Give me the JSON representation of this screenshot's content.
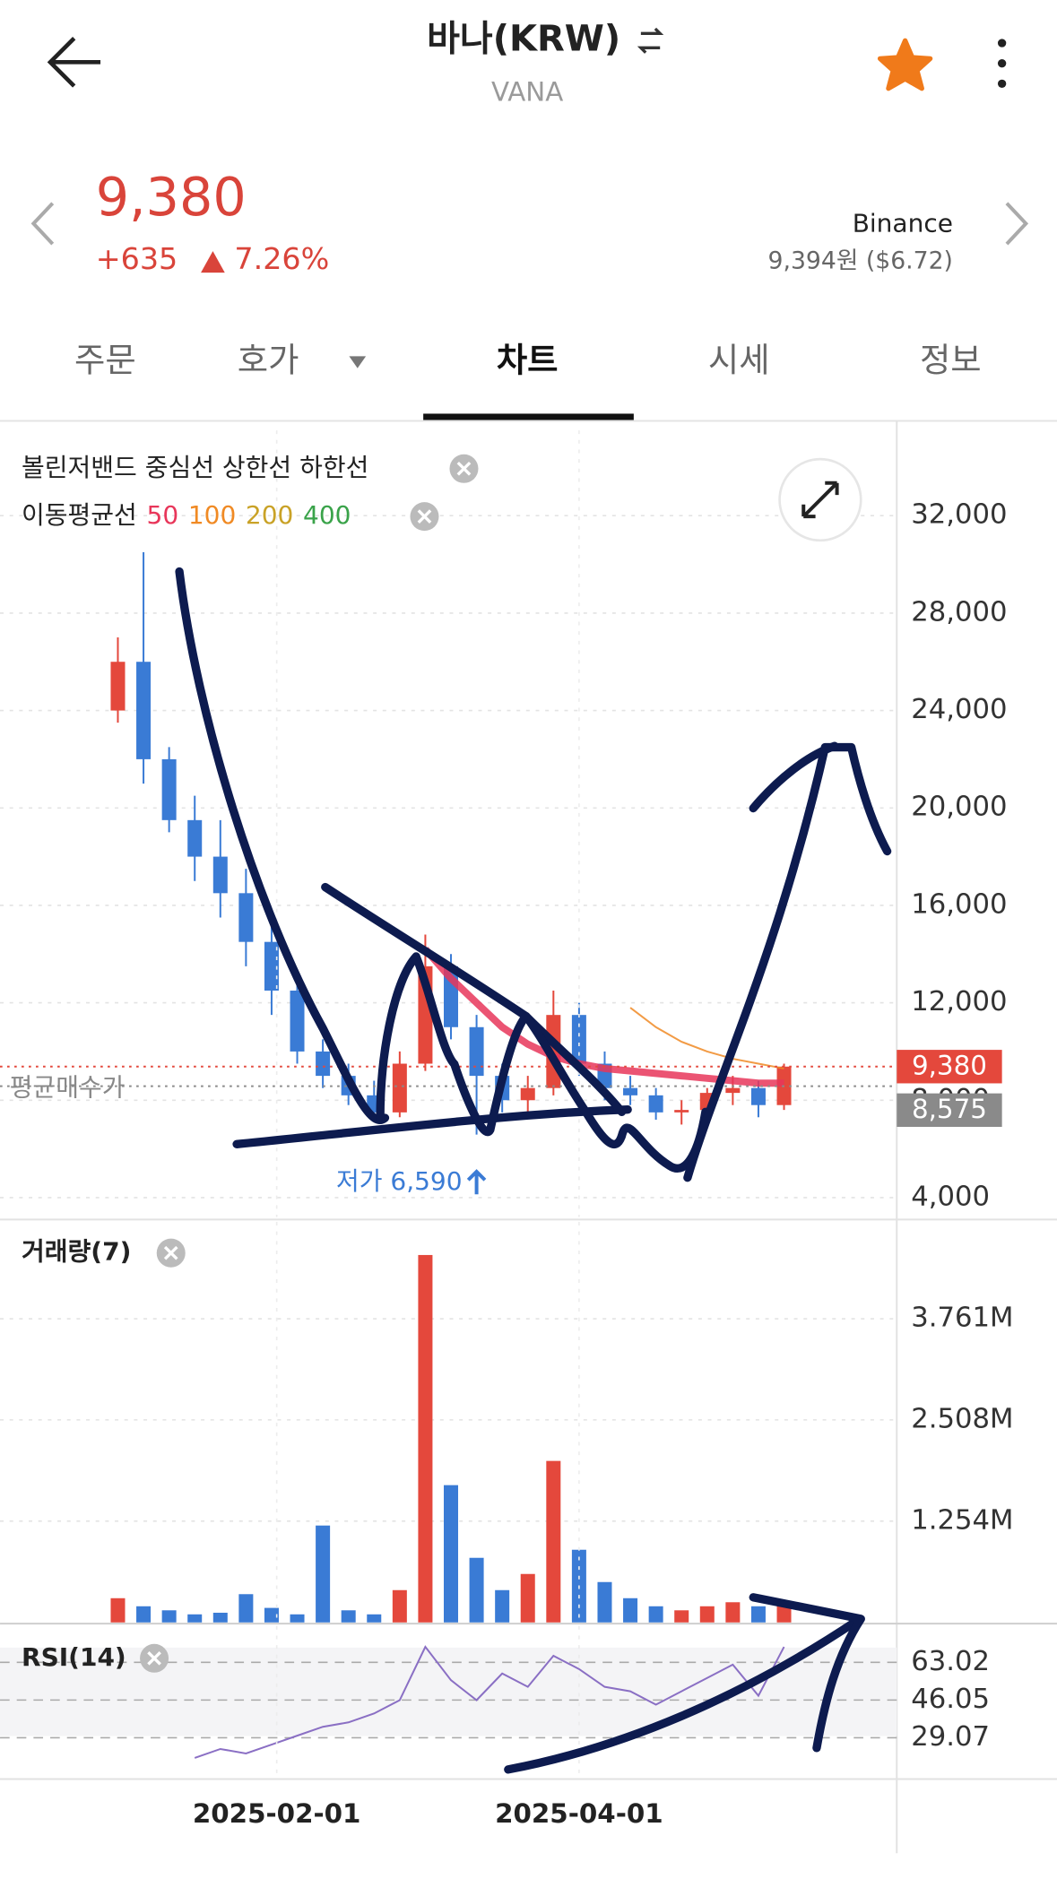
{
  "header": {
    "title": "바나(KRW)",
    "subtitle": "VANA"
  },
  "price": {
    "value": "9,380",
    "change": "+635",
    "change_pct": "7.26%",
    "exchange": "Binance",
    "exchange_price": "9,394원 ($6.72)"
  },
  "tabs": [
    "주문",
    "호가",
    "차트",
    "시세",
    "정보"
  ],
  "indicators": {
    "bollinger": "볼린저밴드 중심선 상한선 하한선",
    "ma": "이동평균선"
  },
  "chart_data": [
    {
      "type": "candlestick",
      "x": [
        "2025-01-01",
        "2025-01-06",
        "2025-01-11",
        "2025-01-16",
        "2025-01-21",
        "2025-01-26",
        "2025-01-31",
        "2025-02-05",
        "2025-02-10",
        "2025-02-15",
        "2025-02-20",
        "2025-02-25",
        "2025-03-02",
        "2025-03-07",
        "2025-03-12",
        "2025-03-17",
        "2025-03-22",
        "2025-03-27",
        "2025-04-01",
        "2025-04-06",
        "2025-04-11",
        "2025-04-16",
        "2025-04-21",
        "2025-04-26",
        "2025-05-01",
        "2025-05-06",
        "2025-05-11"
      ],
      "open": [
        24000,
        26000,
        22000,
        19500,
        18000,
        16500,
        14500,
        12500,
        10000,
        9000,
        8200,
        7500,
        9500,
        13500,
        11000,
        9000,
        8000,
        8500,
        11500,
        9500,
        8500,
        8200,
        7500,
        7600,
        8300,
        8500,
        7800
      ],
      "high": [
        27000,
        30500,
        22500,
        20500,
        19500,
        17500,
        15500,
        13000,
        10500,
        9500,
        8800,
        10000,
        14800,
        14000,
        11500,
        9500,
        9000,
        12500,
        12000,
        10000,
        9000,
        8500,
        8000,
        8500,
        9000,
        8800,
        9500
      ],
      "low": [
        23500,
        21000,
        19000,
        17000,
        15500,
        13500,
        11500,
        9500,
        8500,
        7800,
        7200,
        7300,
        9200,
        10500,
        6590,
        7500,
        7500,
        8200,
        9000,
        8000,
        7800,
        7200,
        7000,
        7400,
        7800,
        7300,
        7600
      ],
      "close": [
        26000,
        22000,
        19500,
        18000,
        16500,
        14500,
        12500,
        10000,
        9000,
        8200,
        7500,
        9500,
        13500,
        11000,
        9000,
        8000,
        8500,
        11500,
        9500,
        8500,
        8200,
        7500,
        7600,
        8300,
        8500,
        7800,
        9380
      ],
      "up_color": "#e4483c",
      "down_color": "#3a7bd5",
      "series": [
        {
          "name": "50",
          "color": "#e8365a",
          "values": [
            null,
            null,
            null,
            null,
            null,
            null,
            null,
            null,
            null,
            null,
            null,
            null,
            14200,
            13000,
            12000,
            11000,
            10300,
            9800,
            9500,
            9300,
            9200,
            9100,
            9000,
            8900,
            8800,
            8700,
            8700
          ]
        },
        {
          "name": "100",
          "color": "#f08a24",
          "values": [
            null,
            null,
            null,
            null,
            null,
            null,
            null,
            null,
            null,
            null,
            null,
            null,
            null,
            null,
            null,
            null,
            null,
            null,
            null,
            null,
            11800,
            11000,
            10400,
            10000,
            9700,
            9500,
            9300
          ]
        },
        {
          "name": "200",
          "color": "#c9a227",
          "values": [
            null,
            null,
            null,
            null,
            null,
            null,
            null,
            null,
            null,
            null,
            null,
            null,
            null,
            null,
            null,
            null,
            null,
            null,
            null,
            null,
            null,
            null,
            null,
            null,
            null,
            null,
            null
          ]
        },
        {
          "name": "400",
          "color": "#3aa34a",
          "values": [
            null,
            null,
            null,
            null,
            null,
            null,
            null,
            null,
            null,
            null,
            null,
            null,
            null,
            null,
            null,
            null,
            null,
            null,
            null,
            null,
            null,
            null,
            null,
            null,
            null,
            null,
            null
          ]
        }
      ],
      "lines": [
        {
          "value": 9380,
          "label": "9,380",
          "color": "#e4483c"
        },
        {
          "name": "평균매수가",
          "value": 8575,
          "label": "8,575",
          "color": "#8a8a8a"
        }
      ],
      "annotation": {
        "text": "저가 6,590",
        "value": 6590,
        "x": "2025-03-12"
      },
      "xlim": [
        "2024-12-09",
        "2025-06-02"
      ],
      "ylim": [
        3200,
        35500
      ],
      "yticks": [
        {
          "value": 4000,
          "label": "4,000"
        },
        {
          "value": 8000,
          "label": "8,000"
        },
        {
          "value": 12000,
          "label": "12,000"
        },
        {
          "value": 16000,
          "label": "16,000"
        },
        {
          "value": 20000,
          "label": "20,000"
        },
        {
          "value": 24000,
          "label": "24,000"
        },
        {
          "value": 28000,
          "label": "28,000"
        },
        {
          "value": 32000,
          "label": "32,000"
        }
      ],
      "grid": true
    },
    {
      "type": "bar",
      "title": "거래량(7)",
      "x": [
        "2025-01-01",
        "2025-01-06",
        "2025-01-11",
        "2025-01-16",
        "2025-01-21",
        "2025-01-26",
        "2025-01-31",
        "2025-02-05",
        "2025-02-10",
        "2025-02-15",
        "2025-02-20",
        "2025-02-25",
        "2025-03-02",
        "2025-03-07",
        "2025-03-12",
        "2025-03-17",
        "2025-03-22",
        "2025-03-27",
        "2025-04-01",
        "2025-04-06",
        "2025-04-11",
        "2025-04-16",
        "2025-04-21",
        "2025-04-26",
        "2025-05-01",
        "2025-05-06",
        "2025-05-11"
      ],
      "values": [
        300000,
        200000,
        150000,
        100000,
        120000,
        350000,
        180000,
        100000,
        1200000,
        150000,
        100000,
        400000,
        4550000,
        1700000,
        800000,
        400000,
        600000,
        2000000,
        900000,
        500000,
        300000,
        200000,
        150000,
        200000,
        250000,
        200000,
        250000
      ],
      "xlim": [
        "2024-12-09",
        "2025-06-02"
      ],
      "ylim": [
        0,
        4960000
      ],
      "yticks": [
        {
          "value": 1254000,
          "label": "1.254M"
        },
        {
          "value": 2508000,
          "label": "2.508M"
        },
        {
          "value": 3761000,
          "label": "3.761M"
        }
      ],
      "grid": true
    },
    {
      "type": "line",
      "title": "RSI(14)",
      "color": "#8a6fc4",
      "x": [
        "2025-01-01",
        "2025-01-06",
        "2025-01-11",
        "2025-01-16",
        "2025-01-21",
        "2025-01-26",
        "2025-01-31",
        "2025-02-05",
        "2025-02-10",
        "2025-02-15",
        "2025-02-20",
        "2025-02-25",
        "2025-03-02",
        "2025-03-07",
        "2025-03-12",
        "2025-03-17",
        "2025-03-22",
        "2025-03-27",
        "2025-04-01",
        "2025-04-06",
        "2025-04-11",
        "2025-04-16",
        "2025-04-21",
        "2025-04-26",
        "2025-05-01",
        "2025-05-06",
        "2025-05-11"
      ],
      "values": [
        null,
        null,
        null,
        20,
        24,
        22,
        26,
        30,
        34,
        36,
        40,
        46,
        70,
        55,
        46,
        58,
        52,
        66,
        60,
        52,
        50,
        44,
        50,
        56,
        62,
        48,
        70
      ],
      "xlim": [
        "2024-12-09",
        "2025-06-02"
      ],
      "ylim": [
        11,
        79.4
      ],
      "yticks": [
        29.07,
        46.05,
        63.02
      ],
      "xticks": [
        "2025-02-01",
        "2025-04-01"
      ],
      "grid": true
    }
  ]
}
